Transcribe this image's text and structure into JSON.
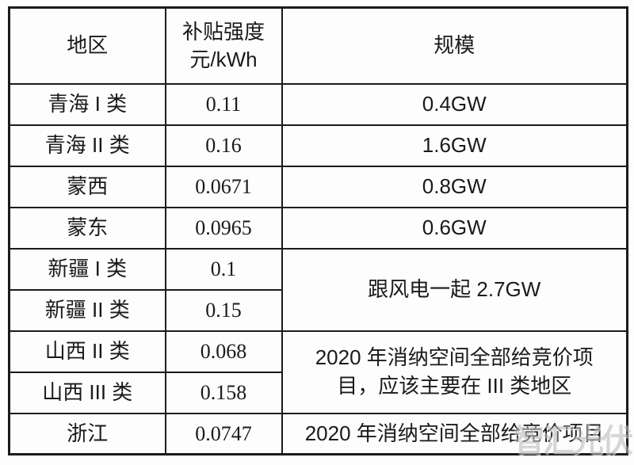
{
  "table": {
    "headers": {
      "region": "地区",
      "subsidy": "补贴强度\n元/kWh",
      "scale": "规模"
    },
    "rows": [
      {
        "region": "青海 I 类",
        "subsidy": "0.11",
        "scale": "0.4GW"
      },
      {
        "region": "青海 II 类",
        "subsidy": "0.16",
        "scale": "1.6GW"
      },
      {
        "region": "蒙西",
        "subsidy": "0.0671",
        "scale": "0.8GW"
      },
      {
        "region": "蒙东",
        "subsidy": "0.0965",
        "scale": "0.6GW"
      },
      {
        "region": "新疆 I 类",
        "subsidy": "0.1",
        "scale": "跟风电一起 2.7GW",
        "scale_rowspan": 2
      },
      {
        "region": "新疆 II 类",
        "subsidy": "0.15"
      },
      {
        "region": "山西 II 类",
        "subsidy": "0.068",
        "scale": "2020 年消纳空间全部给竞价项\n目，应该主要在 III 类地区",
        "scale_rowspan": 2
      },
      {
        "region": "山西 III 类",
        "subsidy": "0.158"
      },
      {
        "region": "浙江",
        "subsidy": "0.0747",
        "scale": "2020 年消纳空间全部给竞价项目"
      }
    ]
  },
  "watermark": {
    "text": "智汇光伏"
  },
  "colors": {
    "background": "#fdfdfd",
    "border": "#1b1b1b",
    "text": "#1a1a1a",
    "watermark": "#bdbdbd"
  }
}
